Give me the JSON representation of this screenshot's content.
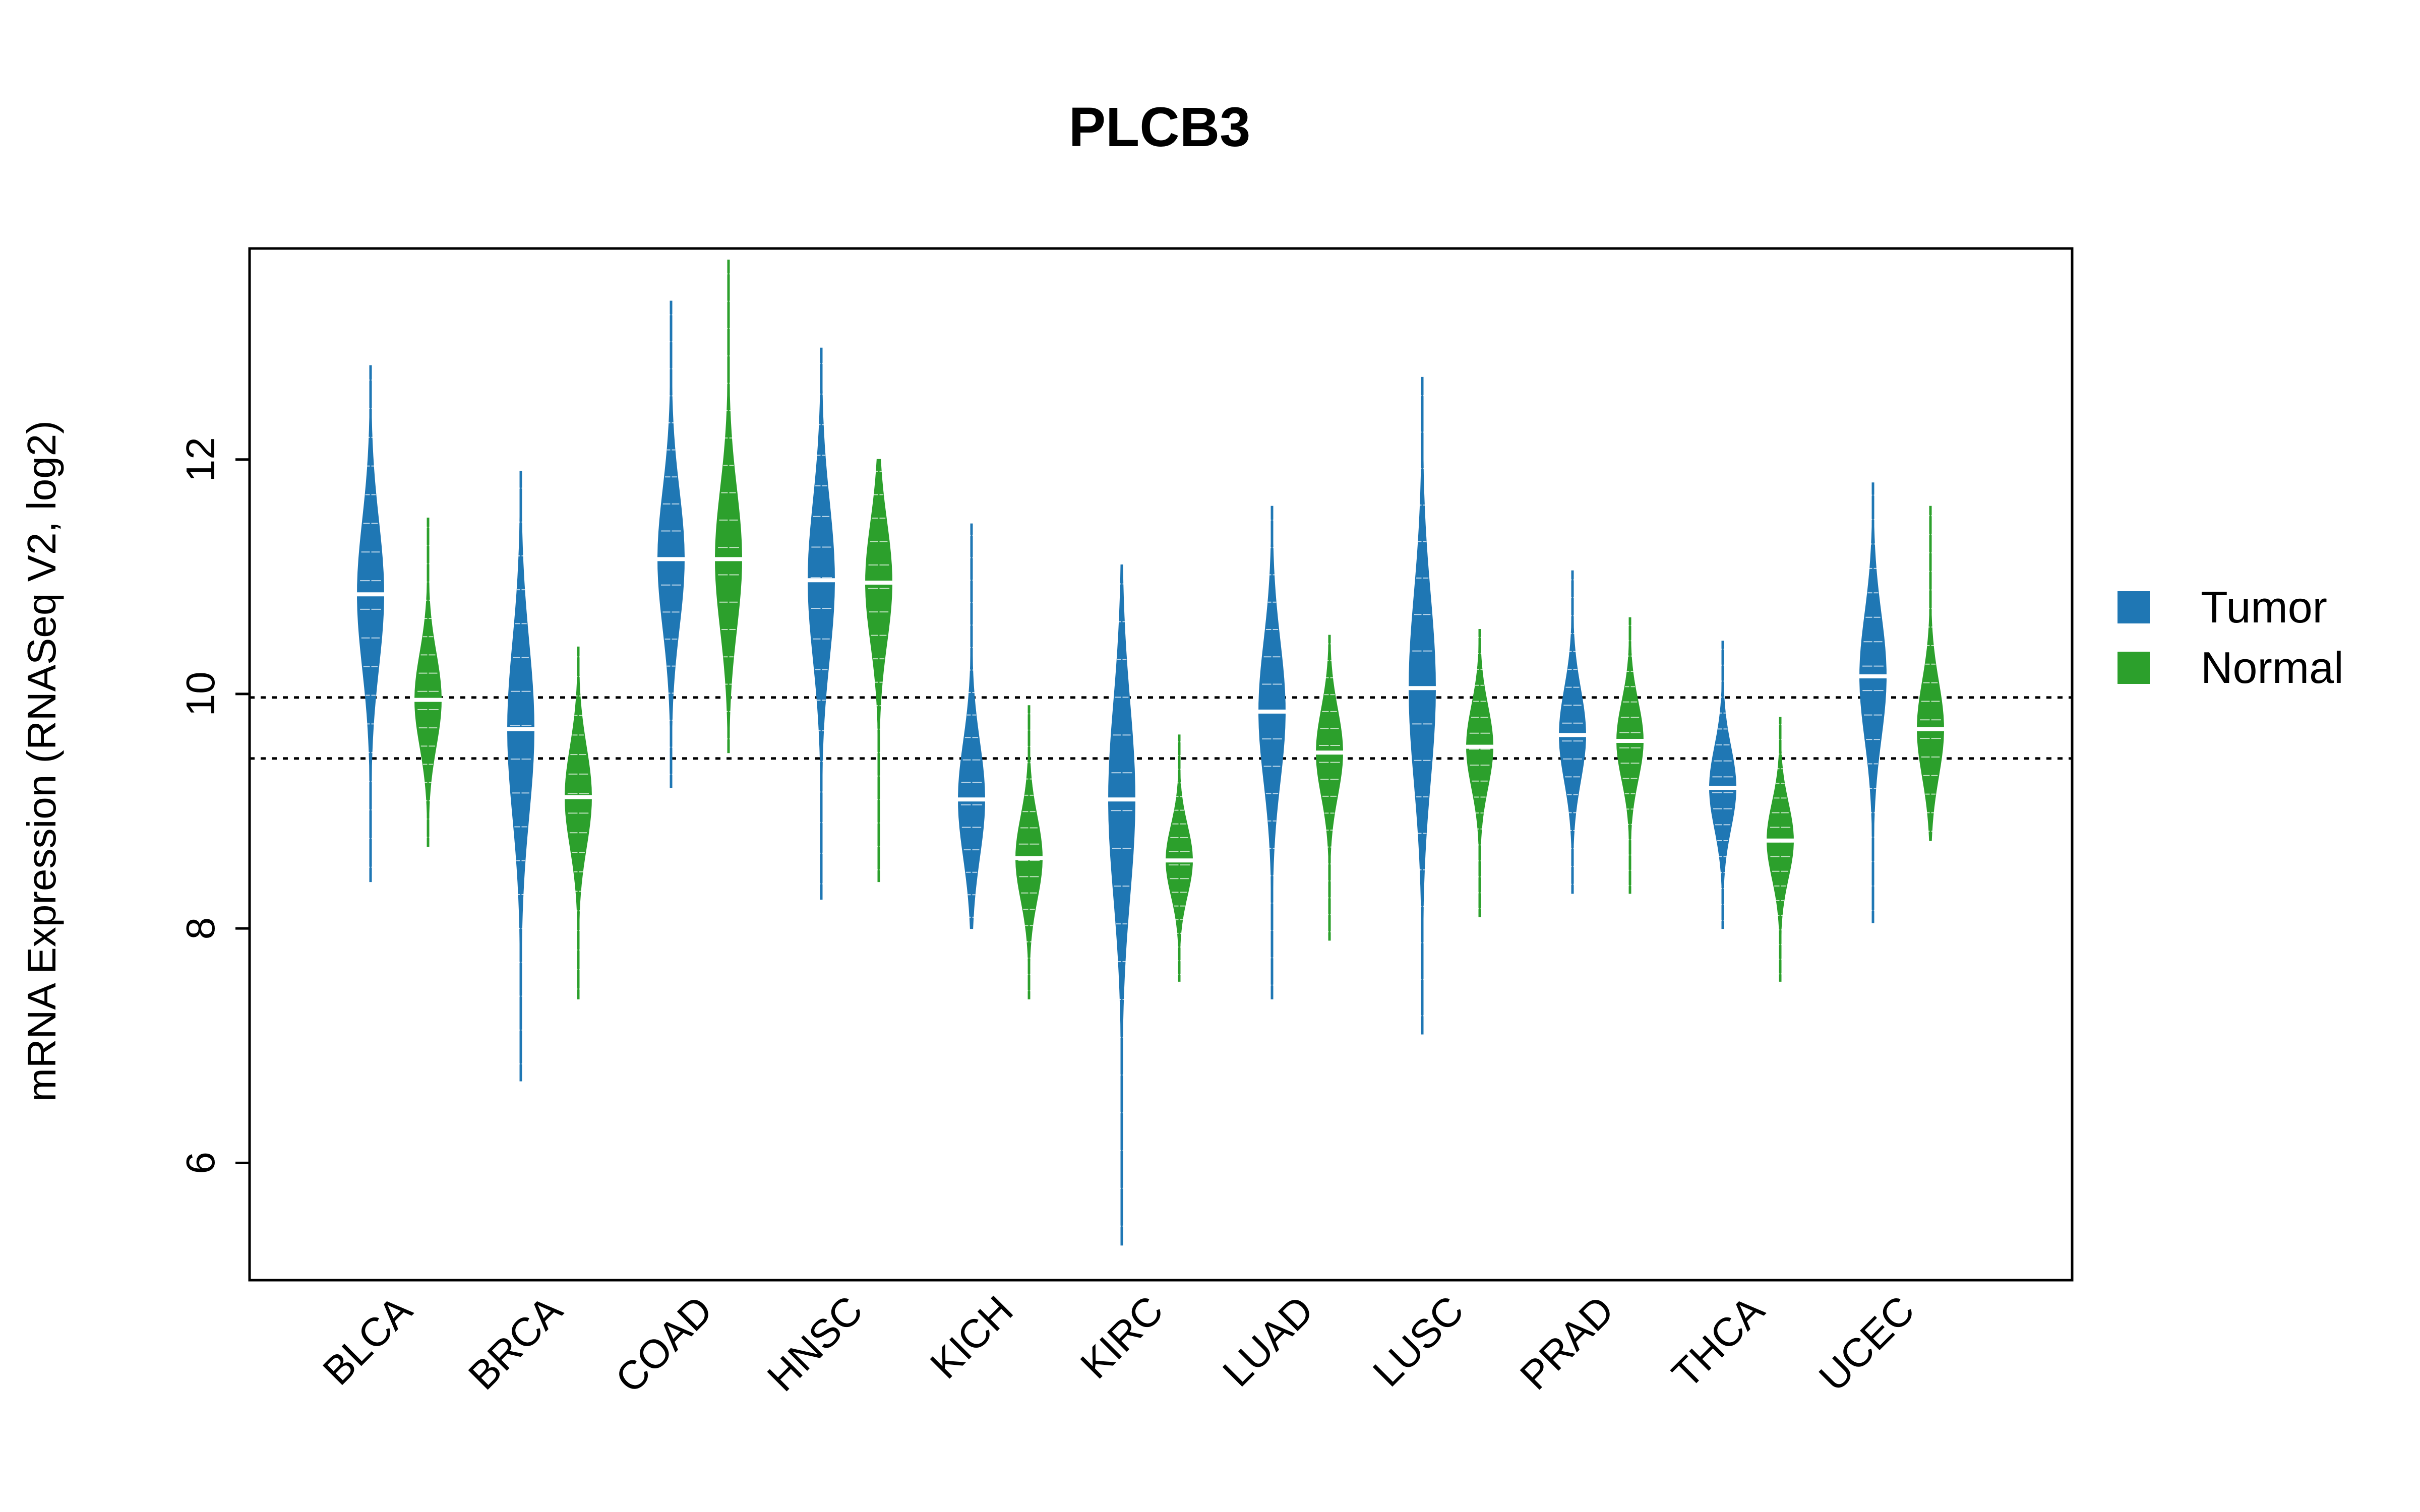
{
  "chart_data": {
    "type": "violin",
    "title": "PLCB3",
    "ylabel": "mRNA Expression (RNASeq V2, log2)",
    "xlabel": "",
    "ylim": [
      5.0,
      13.8
    ],
    "yticks": [
      6,
      8,
      10,
      12
    ],
    "reference_lines": [
      9.45,
      9.97
    ],
    "categories": [
      "BLCA",
      "BRCA",
      "COAD",
      "HNSC",
      "KICH",
      "KIRC",
      "LUAD",
      "LUSC",
      "PRAD",
      "THCA",
      "UCEC"
    ],
    "series": [
      {
        "name": "Tumor",
        "color": "#1f77b4",
        "median": [
          10.85,
          9.7,
          11.15,
          10.97,
          9.1,
          9.1,
          9.85,
          10.05,
          9.65,
          9.2,
          10.15
        ],
        "min": [
          8.4,
          6.7,
          9.2,
          8.25,
          8.0,
          5.3,
          7.4,
          7.1,
          8.3,
          8.0,
          8.05
        ],
        "max": [
          12.8,
          11.9,
          13.35,
          12.95,
          11.45,
          11.1,
          11.6,
          12.7,
          11.05,
          10.45,
          11.8
        ]
      },
      {
        "name": "Normal",
        "color": "#2ca02c",
        "median": [
          9.95,
          9.12,
          11.15,
          10.95,
          8.6,
          8.58,
          9.5,
          9.55,
          9.6,
          8.75,
          9.7
        ],
        "min": [
          8.7,
          7.4,
          9.5,
          8.4,
          7.4,
          7.55,
          7.9,
          8.1,
          8.3,
          7.55,
          8.75
        ],
        "max": [
          11.5,
          10.4,
          13.7,
          12.0,
          9.9,
          9.65,
          10.5,
          10.55,
          10.65,
          9.8,
          11.6
        ]
      }
    ],
    "legend": {
      "position": "right",
      "entries": [
        {
          "label": "Tumor",
          "color": "#1f77b4"
        },
        {
          "label": "Normal",
          "color": "#2ca02c"
        }
      ]
    },
    "grid": false
  }
}
